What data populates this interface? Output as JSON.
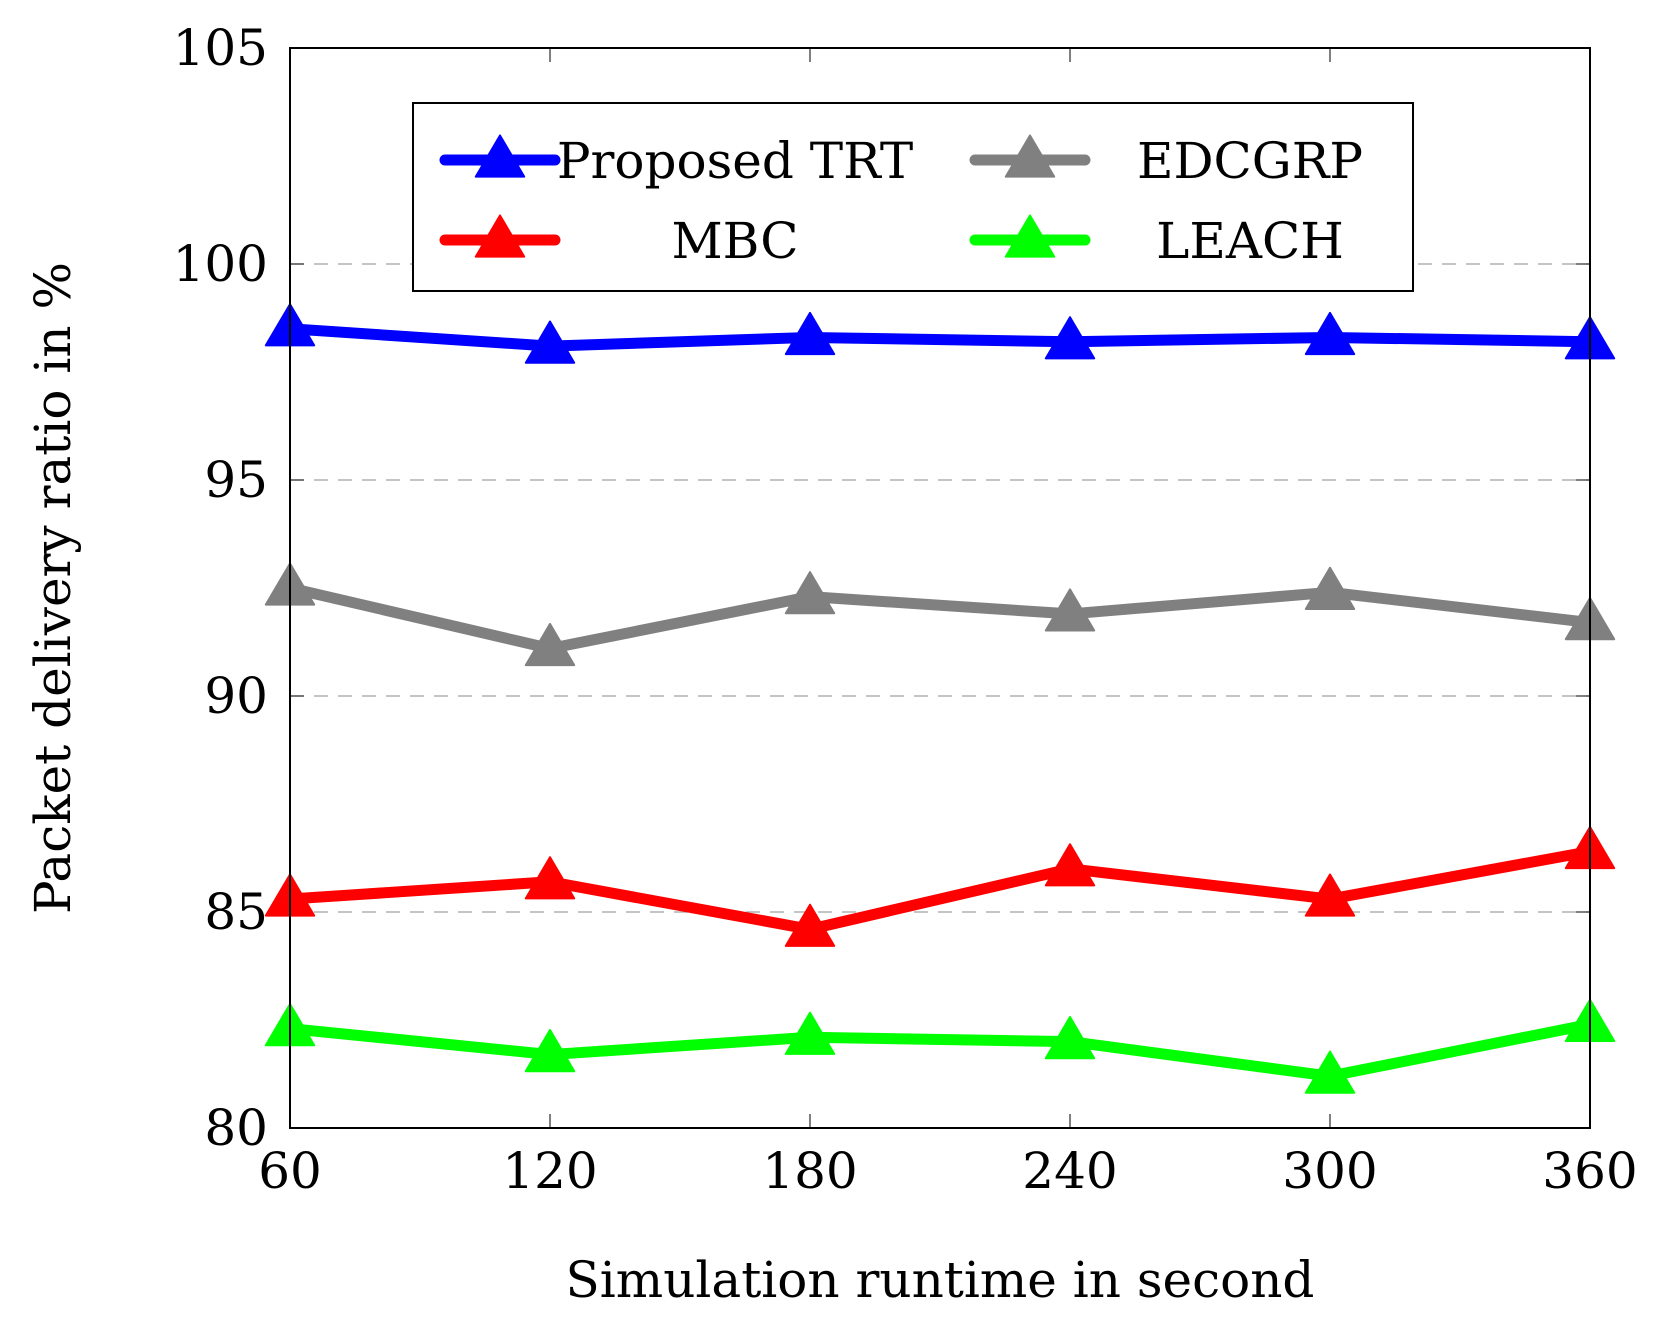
{
  "chart_data": {
    "type": "line",
    "title": "",
    "xlabel": "Simulation runtime in second",
    "ylabel": "Packet delivery ratio in %",
    "x": [
      60,
      120,
      180,
      240,
      300,
      360
    ],
    "x_ticks": [
      "60",
      "120",
      "180",
      "240",
      "300",
      "360"
    ],
    "y_ticks": [
      "80",
      "85",
      "90",
      "95",
      "100",
      "105"
    ],
    "xlim": [
      60,
      360
    ],
    "ylim": [
      80,
      105
    ],
    "grid": "horizontal-dashed",
    "legend_position": "top-center",
    "series": [
      {
        "name": "Proposed TRT",
        "color": "#0000ff",
        "marker": "triangle",
        "values": [
          98.5,
          98.1,
          98.3,
          98.2,
          98.3,
          98.2
        ]
      },
      {
        "name": "EDCGRP",
        "color": "#808080",
        "marker": "triangle",
        "values": [
          92.5,
          91.1,
          92.3,
          91.9,
          92.4,
          91.7
        ]
      },
      {
        "name": "MBC",
        "color": "#ff0000",
        "marker": "triangle",
        "values": [
          85.3,
          85.7,
          84.6,
          86.0,
          85.3,
          86.4
        ]
      },
      {
        "name": "LEACH",
        "color": "#00ff00",
        "marker": "triangle",
        "values": [
          82.3,
          81.7,
          82.1,
          82.0,
          81.2,
          82.4
        ]
      }
    ]
  }
}
